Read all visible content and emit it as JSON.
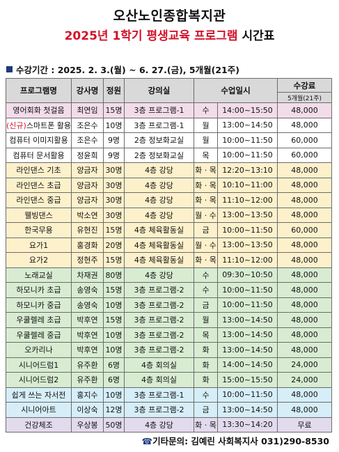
{
  "header": {
    "title": "오산노인종합복지관",
    "subtitle_red": "2025년 1학기 평생교육 프로그램",
    "subtitle_black": "시간표"
  },
  "period": {
    "text": "수강기간 : 2025. 2. 3.(월) ~ 6. 27.(금), 5개월(21주)"
  },
  "table": {
    "headers": {
      "program": "프로그램명",
      "instructor": "강사명",
      "capacity": "정원",
      "room": "강의실",
      "schedule": "수업일시",
      "fee": "수강료",
      "fee_sub": "5개월(21주)"
    },
    "rows": [
      {
        "group": "pink",
        "prefix": "",
        "name": "영어회화 첫걸음",
        "instructor": "최연임",
        "capacity": "15명",
        "room": "3층 프로그램-1",
        "day": "수",
        "time": "14:00~15:50",
        "fee": "48,000"
      },
      {
        "group": "white",
        "prefix": "(신규)",
        "name": "스마트폰 활용",
        "instructor": "조은수",
        "capacity": "10명",
        "room": "3층 프로그램-1",
        "day": "월",
        "time": "13:00~14:50",
        "fee": "48,000"
      },
      {
        "group": "white",
        "prefix": "",
        "name": "컴퓨터 이미지활용",
        "instructor": "조은수",
        "capacity": "9명",
        "room": "2층 정보화교실",
        "day": "월",
        "time": "10:00~11:50",
        "fee": "60,000"
      },
      {
        "group": "white",
        "prefix": "",
        "name": "컴퓨터 문서활용",
        "instructor": "정윤희",
        "capacity": "9명",
        "room": "2층 정보화교실",
        "day": "목",
        "time": "10:00~11:50",
        "fee": "60,000"
      },
      {
        "group": "yellow",
        "prefix": "",
        "name": "라인댄스 기초",
        "instructor": "양금자",
        "capacity": "30명",
        "room": "4층 강당",
        "day": "화 · 목",
        "time": "12:20~13:10",
        "fee": "48,000"
      },
      {
        "group": "yellow",
        "prefix": "",
        "name": "라인댄스 초급",
        "instructor": "양금자",
        "capacity": "30명",
        "room": "4층 강당",
        "day": "화 · 목",
        "time": "10:10~11:00",
        "fee": "48,000"
      },
      {
        "group": "yellow",
        "prefix": "",
        "name": "라인댄스 중급",
        "instructor": "양금자",
        "capacity": "30명",
        "room": "4층 강당",
        "day": "화 · 목",
        "time": "11:10~12:00",
        "fee": "48,000"
      },
      {
        "group": "yellow",
        "prefix": "",
        "name": "웰빙댄스",
        "instructor": "박소연",
        "capacity": "30명",
        "room": "4층 강당",
        "day": "월 · 수",
        "time": "13:00~13:50",
        "fee": "48,000"
      },
      {
        "group": "yellow",
        "prefix": "",
        "name": "한국무용",
        "instructor": "유현진",
        "capacity": "15명",
        "room": "4층 체육활동실",
        "day": "금",
        "time": "10:00~11:50",
        "fee": "60,000"
      },
      {
        "group": "yellow",
        "prefix": "",
        "name": "요가1",
        "instructor": "홍경화",
        "capacity": "20명",
        "room": "4층 체육활동실",
        "day": "월 · 수",
        "time": "13:00~13:50",
        "fee": "48,000"
      },
      {
        "group": "yellow",
        "prefix": "",
        "name": "요가2",
        "instructor": "정현주",
        "capacity": "15명",
        "room": "4층 체육활동실",
        "day": "화 · 목",
        "time": "11:10~12:00",
        "fee": "48,000"
      },
      {
        "group": "green",
        "prefix": "",
        "name": "노래교실",
        "instructor": "차재권",
        "capacity": "80명",
        "room": "4층 강당",
        "day": "수",
        "time": "09:30~10:50",
        "fee": "48,000"
      },
      {
        "group": "green",
        "prefix": "",
        "name": "하모니카 초급",
        "instructor": "송영숙",
        "capacity": "15명",
        "room": "3층 프로그램-2",
        "day": "수",
        "time": "10:00~11:50",
        "fee": "48,000"
      },
      {
        "group": "green",
        "prefix": "",
        "name": "하모니카 중급",
        "instructor": "송영숙",
        "capacity": "10명",
        "room": "3층 프로그램-2",
        "day": "금",
        "time": "10:00~11:50",
        "fee": "48,000"
      },
      {
        "group": "green",
        "prefix": "",
        "name": "우쿨렐레 초급",
        "instructor": "박후연",
        "capacity": "15명",
        "room": "3층 프로그램-2",
        "day": "월",
        "time": "13:00~14:50",
        "fee": "48,000"
      },
      {
        "group": "green",
        "prefix": "",
        "name": "우쿨렐레 중급",
        "instructor": "박후연",
        "capacity": "10명",
        "room": "3층 프로그램-2",
        "day": "목",
        "time": "13:00~14:50",
        "fee": "48,000"
      },
      {
        "group": "green",
        "prefix": "",
        "name": "오카리나",
        "instructor": "박후연",
        "capacity": "10명",
        "room": "3층 프로그램-2",
        "day": "화",
        "time": "13:00~14:50",
        "fee": "48,000"
      },
      {
        "group": "green",
        "prefix": "",
        "name": "시니어드럼1",
        "instructor": "유주환",
        "capacity": "6명",
        "room": "4층 회의실",
        "day": "화",
        "time": "14:00~14:50",
        "fee": "24,000"
      },
      {
        "group": "green",
        "prefix": "",
        "name": "시니어드럼2",
        "instructor": "유주환",
        "capacity": "6명",
        "room": "4층 회의실",
        "day": "화",
        "time": "15:00~15:50",
        "fee": "24,000"
      },
      {
        "group": "blue",
        "prefix": "",
        "name": "쉽게 쓰는 자서전",
        "instructor": "홍지수",
        "capacity": "10명",
        "room": "3층 프로그램-1",
        "day": "수",
        "time": "10:00~11:50",
        "fee": "48,000"
      },
      {
        "group": "blue",
        "prefix": "",
        "name": "시니어아트",
        "instructor": "이상숙",
        "capacity": "12명",
        "room": "3층 프로그램-2",
        "day": "금",
        "time": "13:00~14:50",
        "fee": "48,000"
      },
      {
        "group": "lav",
        "prefix": "",
        "name": "건강체조",
        "instructor": "우상봉",
        "capacity": "50명",
        "room": "4층 강당",
        "day": "화 · 목",
        "time": "13:30~14:20",
        "fee": "무료"
      }
    ]
  },
  "footer": {
    "icon": "phone-icon",
    "icon_glyph": "☎",
    "text": "기타문의: 김예린 사회복지사 031)290-8530"
  },
  "colors": {
    "title_red": "#d3122a",
    "header_gray": "#d9d9d9",
    "pink": "#f2dcea",
    "yellow": "#fdf1cc",
    "green": "#d8ecd2",
    "blue": "#d6eef8",
    "lavender": "#e2dbee"
  }
}
